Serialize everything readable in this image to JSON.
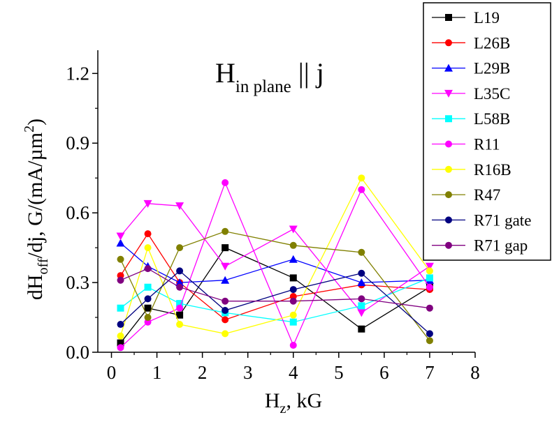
{
  "chart_data": {
    "type": "line",
    "title": "",
    "annotation": {
      "main": "H",
      "sub": "in plane",
      "rest": " || j"
    },
    "xlabel": {
      "main": "H",
      "sub": "z",
      "rest": ", kG"
    },
    "ylabel": {
      "p1": "dH",
      "sub1": "off",
      "p2": "/dj, G/(mA/µm",
      "sup": "2",
      "p3": ")"
    },
    "xlim": [
      -0.3,
      8
    ],
    "ylim": [
      0,
      1.3
    ],
    "xticks": [
      0,
      1,
      2,
      3,
      4,
      5,
      6,
      7,
      8
    ],
    "yticks": [
      0.0,
      0.3,
      0.6,
      0.9,
      1.2
    ],
    "xtick_labels": [
      "0",
      "1",
      "2",
      "3",
      "4",
      "5",
      "6",
      "7",
      "8"
    ],
    "ytick_labels": [
      "0.0",
      "0.3",
      "0.6",
      "0.9",
      "1.2"
    ],
    "grid": false,
    "legend_position": "top-right",
    "x": [
      0.2,
      0.8,
      1.5,
      2.5,
      4,
      5.5,
      7
    ],
    "series": [
      {
        "name": "L19",
        "color": "#000000",
        "marker": "square",
        "values": [
          0.04,
          0.19,
          0.16,
          0.45,
          0.32,
          0.1,
          0.28
        ]
      },
      {
        "name": "L26B",
        "color": "#ff0000",
        "marker": "circle",
        "values": [
          0.33,
          0.51,
          0.3,
          0.14,
          0.24,
          0.29,
          0.27
        ]
      },
      {
        "name": "L29B",
        "color": "#0000ff",
        "marker": "triangle-up",
        "values": [
          0.47,
          0.37,
          0.3,
          0.31,
          0.4,
          0.3,
          0.31
        ]
      },
      {
        "name": "L35C",
        "color": "#ff00ff",
        "marker": "triangle-down",
        "values": [
          0.5,
          0.64,
          0.63,
          0.37,
          0.53,
          0.17,
          0.37
        ]
      },
      {
        "name": "L58B",
        "color": "#00ffff",
        "marker": "square",
        "values": [
          0.19,
          0.28,
          0.21,
          0.17,
          0.13,
          0.2,
          0.32
        ]
      },
      {
        "name": "R11",
        "color": "#ff00ff",
        "marker": "circle",
        "values": [
          0.02,
          0.13,
          0.19,
          0.73,
          0.03,
          0.7,
          0.28
        ]
      },
      {
        "name": "R16B",
        "color": "#ffff00",
        "marker": "circle",
        "values": [
          0.07,
          0.45,
          0.12,
          0.08,
          0.16,
          0.75,
          0.35
        ]
      },
      {
        "name": "R47",
        "color": "#808000",
        "marker": "circle",
        "values": [
          0.4,
          0.15,
          0.45,
          0.52,
          0.46,
          0.43,
          0.05
        ]
      },
      {
        "name": "R71 gate",
        "color": "#000080",
        "marker": "circle",
        "values": [
          0.12,
          0.23,
          0.35,
          0.18,
          0.27,
          0.34,
          0.08
        ]
      },
      {
        "name": "R71 gap",
        "color": "#800080",
        "marker": "circle",
        "values": [
          0.31,
          0.36,
          0.28,
          0.22,
          0.22,
          0.23,
          0.19
        ]
      }
    ]
  }
}
